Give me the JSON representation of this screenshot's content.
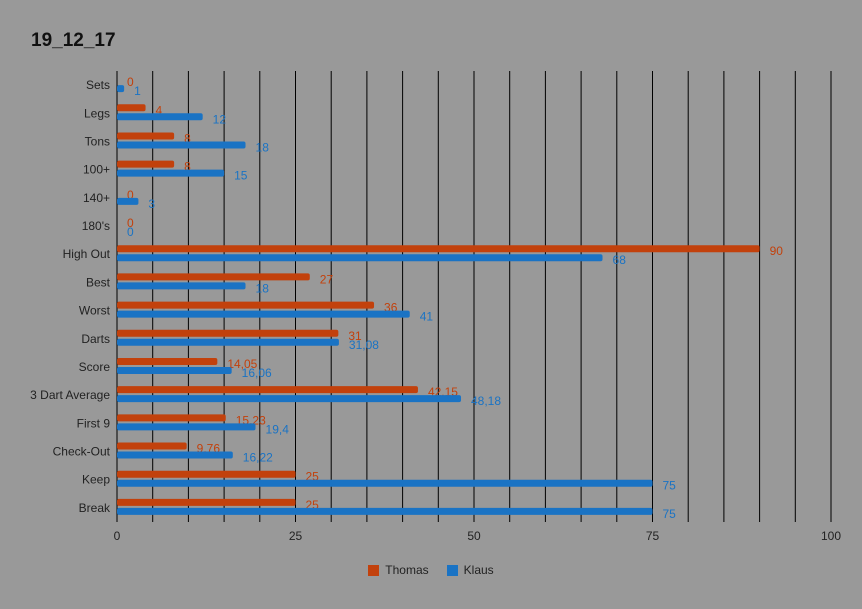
{
  "chart_data": {
    "type": "bar",
    "orientation": "horizontal",
    "title": "19_12_17",
    "categories": [
      "Sets",
      "Legs",
      "Tons",
      "100+",
      "140+",
      "180's",
      "High Out",
      "Best",
      "Worst",
      "Darts",
      "Score",
      "3 Dart Average",
      "First 9",
      "Check-Out",
      "Keep",
      "Break"
    ],
    "series": [
      {
        "name": "Thomas",
        "color": "#c2410c",
        "values": [
          0,
          4,
          8,
          8,
          0,
          0,
          90,
          27,
          36,
          31,
          14.05,
          42.15,
          15.23,
          9.76,
          25,
          25
        ],
        "labels": [
          "0",
          "4",
          "8",
          "8",
          "0",
          "0",
          "90",
          "27",
          "36",
          "31",
          "14,05",
          "42,15",
          "15,23",
          "9,76",
          "25",
          "25"
        ]
      },
      {
        "name": "Klaus",
        "color": "#1a73c4",
        "values": [
          1,
          12,
          18,
          15,
          3,
          0,
          68,
          18,
          41,
          31.08,
          16.06,
          48.18,
          19.4,
          16.22,
          75,
          75
        ],
        "labels": [
          "1",
          "12",
          "18",
          "15",
          "3",
          "0",
          "68",
          "18",
          "41",
          "31,08",
          "16,06",
          "48,18",
          "19,4",
          "16,22",
          "75",
          "75"
        ]
      }
    ],
    "xlim": [
      0,
      100
    ],
    "x_ticks": [
      0,
      25,
      50,
      75,
      100
    ],
    "grid": true,
    "legend_position": "bottom"
  }
}
